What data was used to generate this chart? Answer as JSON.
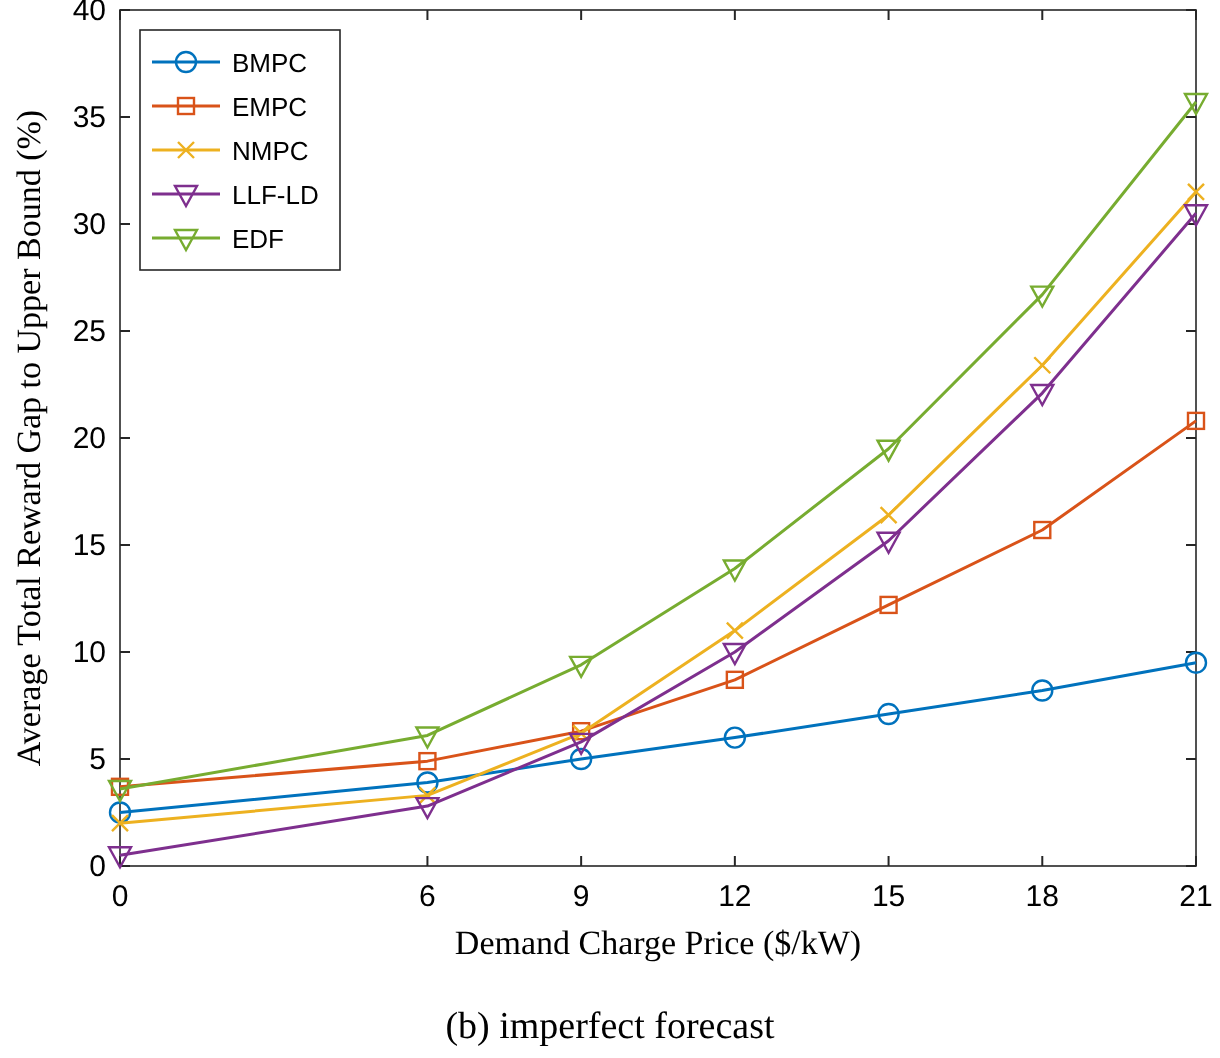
{
  "chart_data": {
    "type": "line",
    "xlabel": "Demand Charge Price ($/kW)",
    "ylabel": "Average Total Reward Gap to Upper Bound (%)",
    "annotations": [
      "(b) imperfect forecast"
    ],
    "x": [
      0,
      6,
      9,
      12,
      15,
      18,
      21
    ],
    "xlim": [
      0,
      21
    ],
    "xticks": [
      0,
      6,
      9,
      12,
      15,
      18,
      21
    ],
    "ylim": [
      0,
      40
    ],
    "yticks": [
      0,
      5,
      10,
      15,
      20,
      25,
      30,
      35,
      40
    ],
    "grid": false,
    "legend": "top left",
    "series": [
      {
        "name": "BMPC",
        "color": "#0072bd",
        "marker": "circle",
        "values": [
          2.5,
          3.9,
          5.0,
          6.0,
          7.1,
          8.2,
          9.5
        ]
      },
      {
        "name": "EMPC",
        "color": "#d95319",
        "marker": "square",
        "values": [
          3.7,
          4.9,
          6.3,
          8.7,
          12.2,
          15.7,
          20.8
        ]
      },
      {
        "name": "NMPC",
        "color": "#edb120",
        "marker": "cross",
        "values": [
          2.0,
          3.3,
          6.2,
          11.0,
          16.4,
          23.4,
          31.5
        ]
      },
      {
        "name": "LLF-LD",
        "color": "#7e2f8e",
        "marker": "triangle",
        "values": [
          0.5,
          2.8,
          5.8,
          10.0,
          15.2,
          22.1,
          30.5
        ]
      },
      {
        "name": "EDF",
        "color": "#77ac30",
        "marker": "triangle",
        "values": [
          3.6,
          6.1,
          9.4,
          13.9,
          19.5,
          26.7,
          35.7
        ]
      }
    ]
  }
}
